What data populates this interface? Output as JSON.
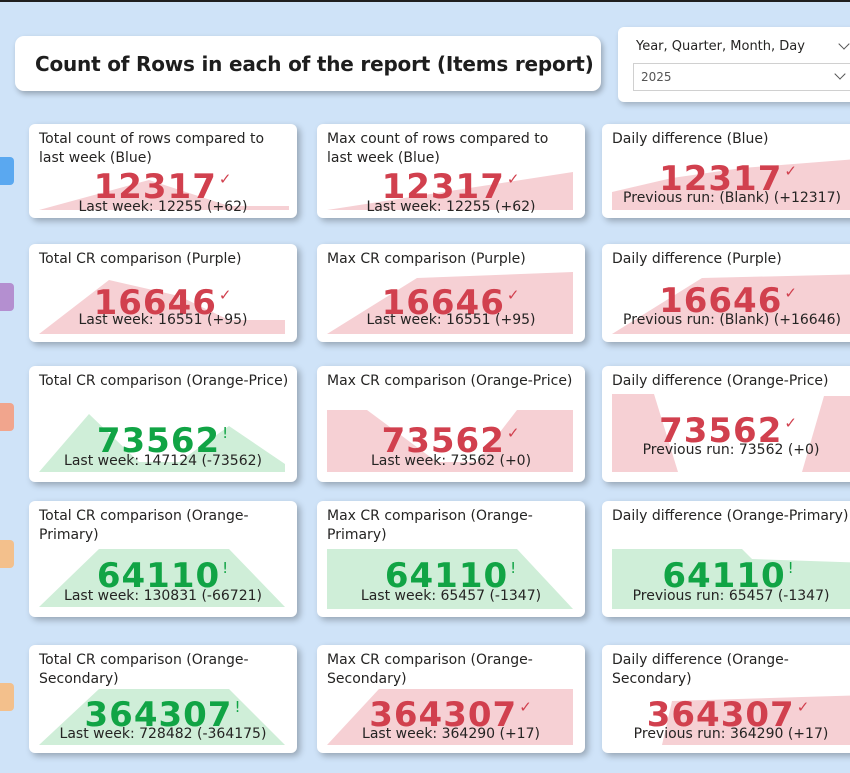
{
  "title": "Count of Rows in each of the report (Items report)",
  "slicer": {
    "label": "Year, Quarter, Month, Day",
    "value": "2025"
  },
  "colors": {
    "bad": "#d1404e",
    "good": "#11a445",
    "bad_fill": "#f6d0d4",
    "good_fill": "#cfeed8",
    "markers": [
      "#5aa8f0",
      "#b48fd0",
      "#f1a58d",
      "#f3c08c",
      "#f3c08c"
    ]
  },
  "cards": [
    {
      "title": "Total count of rows compared to last week (Blue)",
      "value": "12317",
      "status": "check",
      "subtitle": "Last week: 12255 (+62)"
    },
    {
      "title": "Max count of rows compared to last week (Blue)",
      "value": "12317",
      "status": "check",
      "subtitle": "Last week: 12255 (+62)"
    },
    {
      "title": "Daily difference (Blue)",
      "value": "12317",
      "status": "check",
      "subtitle": "Previous run: (Blank) (+12317)"
    },
    {
      "title": "Total CR comparison (Purple)",
      "value": "16646",
      "status": "check",
      "subtitle": "Last week: 16551 (+95)"
    },
    {
      "title": "Max CR comparison (Purple)",
      "value": "16646",
      "status": "check",
      "subtitle": "Last week: 16551 (+95)"
    },
    {
      "title": "Daily difference (Purple)",
      "value": "16646",
      "status": "check",
      "subtitle": "Previous run: (Blank) (+16646)"
    },
    {
      "title": "Total CR comparison (Orange-Price)",
      "value": "73562",
      "status": "alert",
      "subtitle": "Last week: 147124 (-73562)"
    },
    {
      "title": "Max CR comparison (Orange-Price)",
      "value": "73562",
      "status": "check",
      "subtitle": "Last week: 73562 (+0)"
    },
    {
      "title": "Daily difference (Orange-Price)",
      "value": "73562",
      "status": "check",
      "subtitle": "Previous run: 73562 (+0)"
    },
    {
      "title": "Total CR comparison (Orange-Primary)",
      "value": "64110",
      "status": "alert",
      "subtitle": "Last week: 130831 (-66721)"
    },
    {
      "title": "Max CR comparison (Orange-Primary)",
      "value": "64110",
      "status": "alert",
      "subtitle": "Last week: 65457 (-1347)"
    },
    {
      "title": "Daily difference (Orange-Primary)",
      "value": "64110",
      "status": "alert",
      "subtitle": "Previous run: 65457 (-1347)"
    },
    {
      "title": "Total CR comparison (Orange-Secondary)",
      "value": "364307",
      "status": "alert",
      "subtitle": "Last week: 728482 (-364175)"
    },
    {
      "title": "Max CR comparison (Orange-Secondary)",
      "value": "364307",
      "status": "check",
      "subtitle": "Last week: 364290 (+17)"
    },
    {
      "title": "Daily difference (Orange-Secondary)",
      "value": "364307",
      "status": "check",
      "subtitle": "Previous run: 364290 (+17)"
    }
  ]
}
